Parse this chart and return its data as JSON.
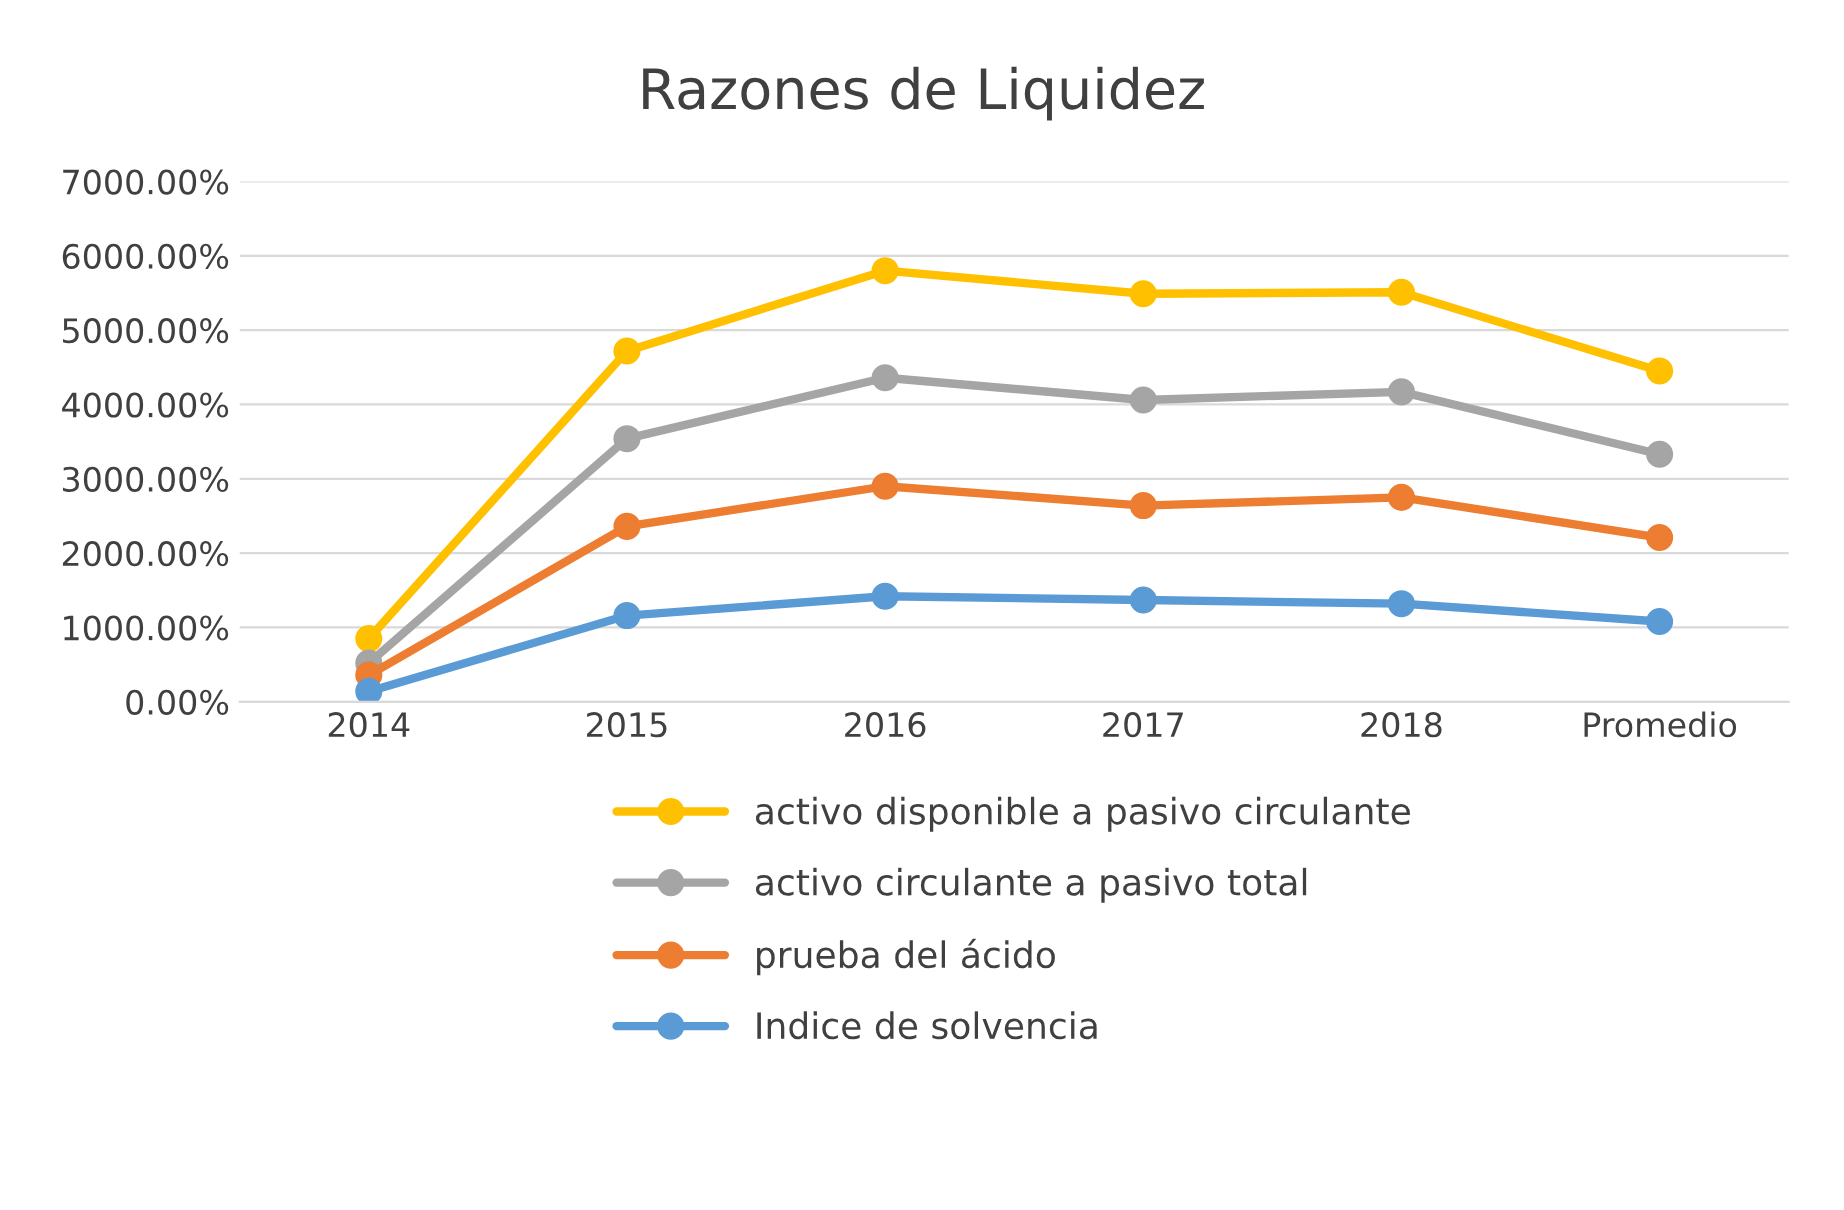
{
  "chart_data": {
    "type": "line",
    "title": "Razones de Liquidez",
    "categories": [
      "2014",
      "2015",
      "2016",
      "2017",
      "2018",
      "Promedio"
    ],
    "series": [
      {
        "name": "activo disponible a pasivo circulante",
        "color": "#ffc000",
        "values": [
          850,
          4720,
          5800,
          5490,
          5510,
          4450
        ]
      },
      {
        "name": "activo circulante a pasivo total",
        "color": "#a5a5a5",
        "values": [
          520,
          3540,
          4360,
          4060,
          4170,
          3330
        ]
      },
      {
        "name": "prueba del ácido",
        "color": "#ed7d31",
        "values": [
          360,
          2360,
          2900,
          2640,
          2750,
          2210
        ]
      },
      {
        "name": "Indice de solvencia",
        "color": "#5b9bd5",
        "values": [
          140,
          1160,
          1420,
          1370,
          1320,
          1080
        ]
      }
    ],
    "ylim": [
      0,
      7000
    ],
    "yticks": [
      {
        "value": 0,
        "label": "0.00%"
      },
      {
        "value": 1000,
        "label": "1000.00%"
      },
      {
        "value": 2000,
        "label": "2000.00%"
      },
      {
        "value": 3000,
        "label": "3000.00%"
      },
      {
        "value": 4000,
        "label": "4000.00%"
      },
      {
        "value": 5000,
        "label": "5000.00%"
      },
      {
        "value": 6000,
        "label": "6000.00%"
      },
      {
        "value": 7000,
        "label": "7000.00%"
      }
    ],
    "grid": "y",
    "legend": "bottom",
    "marker": "circle",
    "line_style": "solid"
  }
}
